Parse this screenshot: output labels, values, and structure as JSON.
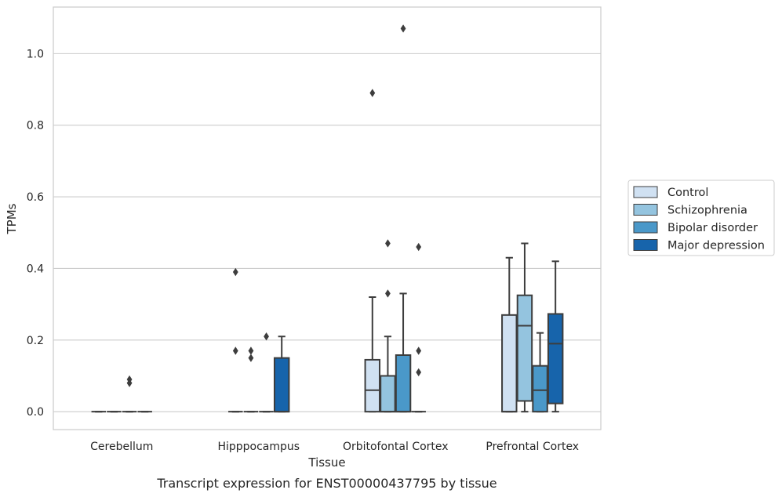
{
  "chart_data": {
    "type": "box",
    "xlabel": "Tissue",
    "ylabel": "TPMs",
    "caption": "Transcript expression for ENST00000437795 by tissue",
    "ylim": [
      -0.05,
      1.13
    ],
    "yticks": [
      0.0,
      0.2,
      0.4,
      0.6,
      0.8,
      1.0
    ],
    "ytick_labels": [
      "0.0",
      "0.2",
      "0.4",
      "0.6",
      "0.8",
      "1.0"
    ],
    "grid": "horizontal",
    "legend_position": "right",
    "categories": [
      "Cerebellum",
      "Hipppocampus",
      "Orbitofontal Cortex",
      "Prefrontal Cortex"
    ],
    "series": [
      {
        "name": "Control",
        "color": "#d0e1f2",
        "boxes": [
          {
            "q1": 0,
            "median": 0,
            "q3": 0,
            "whislo": 0,
            "whishi": 0,
            "fliers": []
          },
          {
            "q1": 0,
            "median": 0,
            "q3": 0,
            "whislo": 0,
            "whishi": 0,
            "fliers": [
              0.39,
              0.17
            ]
          },
          {
            "q1": 0,
            "median": 0.06,
            "q3": 0.145,
            "whislo": 0,
            "whishi": 0.32,
            "fliers": [
              0.89
            ]
          },
          {
            "q1": 0,
            "median": 0,
            "q3": 0.27,
            "whislo": 0,
            "whishi": 0.43,
            "fliers": []
          }
        ]
      },
      {
        "name": "Schizophrenia",
        "color": "#94c4df",
        "boxes": [
          {
            "q1": 0,
            "median": 0,
            "q3": 0,
            "whislo": 0,
            "whishi": 0,
            "fliers": []
          },
          {
            "q1": 0,
            "median": 0,
            "q3": 0,
            "whislo": 0,
            "whishi": 0,
            "fliers": [
              0.17,
              0.15
            ]
          },
          {
            "q1": 0,
            "median": 0,
            "q3": 0.1,
            "whislo": 0,
            "whishi": 0.21,
            "fliers": [
              0.47,
              0.33
            ]
          },
          {
            "q1": 0.03,
            "median": 0.24,
            "q3": 0.325,
            "whislo": 0,
            "whishi": 0.47,
            "fliers": []
          }
        ]
      },
      {
        "name": "Bipolar disorder",
        "color": "#4a98c9",
        "boxes": [
          {
            "q1": 0,
            "median": 0,
            "q3": 0,
            "whislo": 0,
            "whishi": 0,
            "fliers": [
              0.09,
              0.08
            ]
          },
          {
            "q1": 0,
            "median": 0,
            "q3": 0,
            "whislo": 0,
            "whishi": 0,
            "fliers": [
              0.21
            ]
          },
          {
            "q1": 0,
            "median": 0,
            "q3": 0.158,
            "whislo": 0,
            "whishi": 0.33,
            "fliers": [
              1.07
            ]
          },
          {
            "q1": 0,
            "median": 0.06,
            "q3": 0.128,
            "whislo": 0,
            "whishi": 0.22,
            "fliers": []
          }
        ]
      },
      {
        "name": "Major depression",
        "color": "#1764ab",
        "boxes": [
          {
            "q1": 0,
            "median": 0,
            "q3": 0,
            "whislo": 0,
            "whishi": 0,
            "fliers": []
          },
          {
            "q1": 0,
            "median": 0,
            "q3": 0.15,
            "whislo": 0,
            "whishi": 0.21,
            "fliers": []
          },
          {
            "q1": 0,
            "median": 0,
            "q3": 0,
            "whislo": 0,
            "whishi": 0,
            "fliers": [
              0.46,
              0.17,
              0.11
            ]
          },
          {
            "q1": 0.023,
            "median": 0.19,
            "q3": 0.273,
            "whislo": 0,
            "whishi": 0.42,
            "fliers": []
          }
        ]
      }
    ]
  }
}
